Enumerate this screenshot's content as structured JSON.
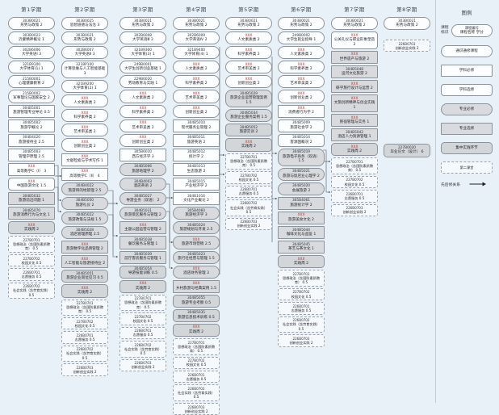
{
  "legend": {
    "title": "图例",
    "badge_label": "课程\n标识",
    "badge_line1": "课程编号",
    "badge_line2": "课程名称 学分",
    "arrow_label": "先后修关系",
    "items": [
      {
        "label": "通识通修课程",
        "t": "ge"
      },
      {
        "label": "学科必修",
        "t": "core"
      },
      {
        "label": "学科选修",
        "t": "disc"
      },
      {
        "label": "专业必修",
        "t": "mreq"
      },
      {
        "label": "专业选修",
        "t": "mele"
      },
      {
        "label": "集中实践环节",
        "t": "prac"
      },
      {
        "label": "第二课堂",
        "t": "sec"
      }
    ]
  },
  "colors": {
    "background": "#e9f1f8",
    "box_fill": "#fcfdfe",
    "major_fill": "#d8dadd",
    "xxx_code": "#b4322d",
    "border": "#8d939b"
  },
  "columns": [
    {
      "header": "第1学期",
      "items": [
        {
          "c": "303B0021",
          "n": "形势与政策",
          "k": "2",
          "t": "ge"
        },
        {
          "c": "303B0023",
          "n": "沂蒙精神概论",
          "k": "1",
          "t": "ge"
        },
        {
          "c": "302B6006",
          "n": "大学英语Ⅰ",
          "k": "3",
          "t": "ge"
        },
        {
          "c": "321B9100",
          "n": "大学体育(1)",
          "k": "1",
          "t": "ge"
        },
        {
          "c": "215B0001",
          "n": "心理健康教育",
          "k": "2",
          "t": "ge"
        },
        {
          "c": "215B0002",
          "n": "军事理论与国家安全",
          "k": "2",
          "t": "ge"
        },
        {
          "c": "304B5001",
          "n": "旅游管理专业导论",
          "k": "0.5",
          "t": "core"
        },
        {
          "c": "304B5002",
          "n": "旅游学概论",
          "k": "2",
          "t": "core"
        },
        {
          "c": "304B4020",
          "n": "旅游接待业",
          "k": "2.5",
          "t": "core"
        },
        {
          "c": "304B5003",
          "n": "管理学原理",
          "k": "2.5",
          "t": "core"
        },
        {
          "c": "XXX",
          "n": "高等数学C（Ⅰ）",
          "k": "3",
          "t": "core"
        },
        {
          "c": "XXX",
          "n": "中国旅游文化",
          "k": "1.5",
          "t": "disc"
        },
        {
          "c": "304B5032",
          "n": "旅游前沿问题",
          "k": "1",
          "t": "mele"
        },
        {
          "c": "304B5070",
          "n": "旅游消费行为与文化",
          "k": "1",
          "t": "mele"
        },
        {
          "c": "XXX",
          "n": "实践周",
          "k": "2",
          "t": "prac"
        },
        {
          "c": "227B0701",
          "n": "思想政治（含国防素质教育）",
          "k": "0.5",
          "t": "sec"
        },
        {
          "c": "227B0702",
          "n": "校园文化",
          "k": "0.5",
          "t": "sec"
        },
        {
          "c": "226B0701",
          "n": "志愿服务",
          "k": "0.5",
          "t": "sec"
        },
        {
          "c": "226B0702",
          "n": "社会实践（含劳育实践）",
          "k": "0.5",
          "t": "sec"
        }
      ]
    },
    {
      "header": "第2学期",
      "items": [
        {
          "c": "303B0025",
          "n": "思想道德与法治",
          "k": "3",
          "t": "ge"
        },
        {
          "c": "303B0021",
          "n": "形势与政策",
          "k": "2",
          "t": "ge"
        },
        {
          "c": "302B6007",
          "n": "大学英语Ⅱ",
          "k": "3",
          "t": "ge"
        },
        {
          "c": "321BP100",
          "n": "计算思维与人工智能基础",
          "k": "3",
          "t": "ge"
        },
        {
          "c": "321B9200",
          "n": "大学体育(2)",
          "k": "1",
          "t": "ge"
        },
        {
          "c": "XXX",
          "n": "人文素质类",
          "k": "2",
          "t": "ge"
        },
        {
          "c": "XXX",
          "n": "科学素养类",
          "k": "2",
          "t": "ge"
        },
        {
          "c": "XXX",
          "n": "艺术审美类",
          "k": "2",
          "t": "ge"
        },
        {
          "c": "XXX",
          "n": "创新创业类",
          "k": "2",
          "t": "ge"
        },
        {
          "c": "XXX",
          "n": "文献检索与学术写作",
          "k": "1",
          "t": "core"
        },
        {
          "c": "XXX",
          "n": "高等数学C（Ⅱ）",
          "k": "4",
          "t": "core"
        },
        {
          "c": "304B4022",
          "n": "旅游目的地管理",
          "k": "2.5",
          "t": "mreq"
        },
        {
          "c": "304B5050",
          "n": "旅游礼仪",
          "k": "2",
          "t": "mreq"
        },
        {
          "c": "304B5022",
          "n": "旅游政策与法规",
          "k": "1.5",
          "t": "mreq"
        },
        {
          "c": "304B5028",
          "n": "酒店管理原理",
          "k": "2.5",
          "t": "mreq"
        },
        {
          "c": "XXX",
          "n": "旅游数字化品牌管理",
          "k": "2",
          "t": "mele"
        },
        {
          "c": "XXX",
          "n": "人工智能与旅游接待业",
          "k": "2",
          "t": "mele"
        },
        {
          "c": "304B5051",
          "n": "旅游企业岗位见习",
          "k": "0.5",
          "t": "prac"
        },
        {
          "c": "XXX",
          "n": "实践周",
          "k": "2",
          "t": "prac"
        },
        {
          "c": "227B0701",
          "n": "思想政治（含国防素质教育）",
          "k": "0.5",
          "t": "sec"
        },
        {
          "c": "227B0702",
          "n": "校园文化",
          "k": "0.5",
          "t": "sec"
        },
        {
          "c": "226B0701",
          "n": "志愿服务",
          "k": "0.5",
          "t": "sec"
        },
        {
          "c": "226B0702",
          "n": "社会实践（含劳育实践）",
          "k": "0.5",
          "t": "sec"
        },
        {
          "c": "226B0703",
          "n": "创新创业实践",
          "k": "2",
          "t": "sec"
        }
      ]
    },
    {
      "header": "第3学期",
      "items": [
        {
          "c": "303B0021",
          "n": "形势与政策",
          "k": "2",
          "t": "ge"
        },
        {
          "c": "302B6008",
          "n": "大学英语Ⅲ",
          "k": "2",
          "t": "ge"
        },
        {
          "c": "321B9300",
          "n": "大学体育(3)",
          "k": "1",
          "t": "ge"
        },
        {
          "c": "249B0001",
          "n": "大学生创新创业基础",
          "k": "1",
          "t": "ge"
        },
        {
          "c": "229B0020",
          "n": "劳动教育与实践",
          "k": "1",
          "t": "ge"
        },
        {
          "c": "XXX",
          "n": "人文素质类",
          "k": "2",
          "t": "ge"
        },
        {
          "c": "XXX",
          "n": "科学素养类",
          "k": "2",
          "t": "ge"
        },
        {
          "c": "XXX",
          "n": "艺术审美类",
          "k": "2",
          "t": "ge"
        },
        {
          "c": "XXX",
          "n": "创新创业类",
          "k": "2",
          "t": "ge"
        },
        {
          "c": "305B0010",
          "n": "西方经济学",
          "k": "3",
          "t": "core"
        },
        {
          "c": "304B5006",
          "n": "旅游地理学",
          "k": "2",
          "t": "mreq"
        },
        {
          "c": "304B4003",
          "n": "酒店英语",
          "k": "2",
          "t": "mreq"
        },
        {
          "c": "304B5027",
          "n": "导游业务（双语）",
          "k": "2",
          "t": "mreq"
        },
        {
          "c": "304B5031",
          "n": "旅游景区服务与管理",
          "k": "2",
          "t": "mreq"
        },
        {
          "c": "XXX",
          "n": "主题公园运营与管理",
          "k": "2",
          "t": "mele"
        },
        {
          "c": "304B5038",
          "n": "餐饮服务与管理",
          "k": "1",
          "t": "mele"
        },
        {
          "c": "304B5039",
          "n": "前厅客房服务与管理",
          "k": "1",
          "t": "mele"
        },
        {
          "c": "304B5054",
          "n": "导游技能训练",
          "k": "0.5",
          "t": "prac"
        },
        {
          "c": "XXX",
          "n": "实践周",
          "k": "2",
          "t": "prac"
        },
        {
          "c": "227B0701",
          "n": "思想政治（含国防素质教育）",
          "k": "0.5",
          "t": "sec"
        },
        {
          "c": "227B0702",
          "n": "校园文化",
          "k": "0.5",
          "t": "sec"
        },
        {
          "c": "226B0701",
          "n": "志愿服务",
          "k": "0.5",
          "t": "sec"
        },
        {
          "c": "226B0702",
          "n": "社会实践（含劳育实践）",
          "k": "0.5",
          "t": "sec"
        },
        {
          "c": "226B0703",
          "n": "创新创业实践",
          "k": "2",
          "t": "sec"
        }
      ]
    },
    {
      "header": "第4学期",
      "items": [
        {
          "c": "303B0021",
          "n": "形势与政策",
          "k": "2",
          "t": "ge"
        },
        {
          "c": "302B6009",
          "n": "大学英语Ⅳ",
          "k": "2",
          "t": "ge"
        },
        {
          "c": "321B9400",
          "n": "大学体育(4)",
          "k": "1",
          "t": "ge"
        },
        {
          "c": "XXX",
          "n": "人文素质类",
          "k": "2",
          "t": "ge"
        },
        {
          "c": "XXX",
          "n": "科学素养类",
          "k": "2",
          "t": "ge"
        },
        {
          "c": "XXX",
          "n": "艺术审美类",
          "k": "2",
          "t": "ge"
        },
        {
          "c": "XXX",
          "n": "创新创业类",
          "k": "2",
          "t": "ge"
        },
        {
          "c": "304B5010",
          "n": "现代服务业管理",
          "k": "2",
          "t": "core"
        },
        {
          "c": "304B5011",
          "n": "旅游英语",
          "k": "2",
          "t": "core"
        },
        {
          "c": "304B5012",
          "n": "统计学",
          "k": "2",
          "t": "core"
        },
        {
          "c": "304B5013",
          "n": "生态旅游",
          "k": "2",
          "t": "core"
        },
        {
          "c": "304B5015",
          "n": "产业经济学",
          "k": "2",
          "t": "core"
        },
        {
          "c": "304B1016",
          "n": "文化产业概论",
          "k": "2",
          "t": "core"
        },
        {
          "c": "305B4060",
          "n": "旅游经济学",
          "k": "3",
          "t": "mreq"
        },
        {
          "c": "304B5024",
          "n": "旅游规划与开发",
          "k": "2.5",
          "t": "mreq"
        },
        {
          "c": "XXX",
          "n": "旅游市场营销",
          "k": "2.5",
          "t": "mreq"
        },
        {
          "c": "304B5023",
          "n": "旅行社经营与管理",
          "k": "1.5",
          "t": "mreq"
        },
        {
          "c": "XXX",
          "n": "酒店财务管理",
          "k": "3",
          "t": "mreq"
        },
        {
          "c": "XXX",
          "n": "乡村旅游与经典案例",
          "k": "1.5",
          "t": "mele"
        },
        {
          "c": "304B5055",
          "n": "旅游专业考察",
          "k": "0.5",
          "t": "prac"
        },
        {
          "c": "304B5035",
          "n": "旅游信息技术训练",
          "k": "0.5",
          "t": "prac"
        },
        {
          "c": "XXX",
          "n": "实践周",
          "k": "2",
          "t": "prac"
        },
        {
          "c": "227B0701",
          "n": "思想政治（含国防素质教育）",
          "k": "0.5",
          "t": "sec"
        },
        {
          "c": "227B0702",
          "n": "校园文化",
          "k": "0.5",
          "t": "sec"
        },
        {
          "c": "226B0701",
          "n": "志愿服务",
          "k": "0.5",
          "t": "sec"
        },
        {
          "c": "226B0702",
          "n": "社会实践（含劳育实践）",
          "k": "0.5",
          "t": "sec"
        },
        {
          "c": "226B0703",
          "n": "创新创业实践",
          "k": "2",
          "t": "sec"
        }
      ]
    },
    {
      "header": "第5学期",
      "items": [
        {
          "c": "303B0021",
          "n": "形势与政策",
          "k": "2",
          "t": "ge"
        },
        {
          "c": "XXX",
          "n": "人文素质类",
          "k": "2",
          "t": "ge"
        },
        {
          "c": "XXX",
          "n": "科学素养类",
          "k": "2",
          "t": "ge"
        },
        {
          "c": "XXX",
          "n": "艺术审美类",
          "k": "2",
          "t": "ge"
        },
        {
          "c": "XXX",
          "n": "创新创业类",
          "k": "2",
          "t": "ge"
        },
        {
          "c": "304B5029",
          "n": "旅游企业运营管理案例",
          "k": "1.5",
          "t": "mreq"
        },
        {
          "c": "304B5034",
          "n": "旅游企业服务案例",
          "k": "1.5",
          "t": "mreq"
        },
        {
          "c": "304B5052",
          "n": "旅游实训",
          "k": "2",
          "t": "prac"
        },
        {
          "c": "XXX",
          "n": "实践周",
          "k": "2",
          "t": "prac"
        },
        {
          "c": "227B0701",
          "n": "思想政治（含国防素质教育）",
          "k": "0.5",
          "t": "sec"
        },
        {
          "c": "227B0702",
          "n": "校园文化",
          "k": "0.5",
          "t": "sec"
        },
        {
          "c": "226B0701",
          "n": "志愿服务",
          "k": "0.5",
          "t": "sec"
        },
        {
          "c": "226B0702",
          "n": "社会实践（含劳育实践）",
          "k": "0.5",
          "t": "sec"
        },
        {
          "c": "226B0703",
          "n": "创新创业实践",
          "k": "2",
          "t": "sec"
        }
      ]
    },
    {
      "header": "第6学期",
      "items": [
        {
          "c": "303B0021",
          "n": "形势与政策",
          "k": "2",
          "t": "ge"
        },
        {
          "c": "249B0002",
          "n": "大学生就业指导",
          "k": "1",
          "t": "ge"
        },
        {
          "c": "XXX",
          "n": "人文素质类",
          "k": "2",
          "t": "ge"
        },
        {
          "c": "XXX",
          "n": "科学素养类",
          "k": "2",
          "t": "ge"
        },
        {
          "c": "XXX",
          "n": "艺术审美类",
          "k": "2",
          "t": "ge"
        },
        {
          "c": "XXX",
          "n": "创新创业类",
          "k": "2",
          "t": "ge"
        },
        {
          "c": "XXX",
          "n": "消费者行为学",
          "k": "2",
          "t": "core"
        },
        {
          "c": "304B5009",
          "n": "旅游社会学",
          "k": "2",
          "t": "disc"
        },
        {
          "c": "304B5014",
          "n": "客源国概况",
          "k": "2",
          "t": "disc"
        },
        {
          "c": "304B5019",
          "n": "旅游电子商务（双语）",
          "k": "1.5",
          "t": "mreq"
        },
        {
          "c": "304B5021",
          "n": "旅游与饭店业心理学",
          "k": "2",
          "t": "mreq"
        },
        {
          "c": "304B5020",
          "n": "会展旅游",
          "k": "2",
          "t": "mreq"
        },
        {
          "c": "305B4061",
          "n": "旅游统计学",
          "k": "2",
          "t": "mele"
        },
        {
          "c": "XXX",
          "n": "旅游美食文化",
          "k": "2",
          "t": "mele"
        },
        {
          "c": "304B5044",
          "n": "咖啡文化与品鉴",
          "k": "1",
          "t": "mele"
        },
        {
          "c": "304B5045",
          "n": "茶艺与茶文化",
          "k": "1",
          "t": "mele"
        },
        {
          "c": "XXX",
          "n": "实践周",
          "k": "2",
          "t": "prac"
        },
        {
          "c": "227B0701",
          "n": "思想政治（含国防素质教育）",
          "k": "0.5",
          "t": "sec"
        },
        {
          "c": "227B0702",
          "n": "校园文化",
          "k": "0.5",
          "t": "sec"
        },
        {
          "c": "226B0701",
          "n": "志愿服务",
          "k": "0.5",
          "t": "sec"
        },
        {
          "c": "226B0702",
          "n": "社会实践（含劳育实践）",
          "k": "0.5",
          "t": "sec"
        },
        {
          "c": "226B0703",
          "n": "创新创业实践",
          "k": "2",
          "t": "sec"
        }
      ]
    },
    {
      "header": "第7学期",
      "items": [
        {
          "c": "303B0021",
          "n": "形势与政策",
          "k": "2",
          "t": "ge"
        },
        {
          "c": "XXX",
          "n": "公关礼仪与职业形象塑造",
          "k": "2",
          "t": "disc"
        },
        {
          "c": "XXX",
          "n": "世界遗产与旅游",
          "k": "2",
          "t": "mele"
        },
        {
          "c": "304B5048",
          "n": "运河文化旅游",
          "k": "2",
          "t": "mele"
        },
        {
          "c": "XXX",
          "n": "研学旅行设计与运营",
          "k": "2",
          "t": "mele"
        },
        {
          "c": "XXX",
          "n": "文旅创新精神与创业实践",
          "k": "1",
          "t": "mele"
        },
        {
          "c": "XXX",
          "n": "民宿管理与实务",
          "k": "1",
          "t": "mele"
        },
        {
          "c": "304B5042",
          "n": "酒店人力资源管理",
          "k": "1",
          "t": "mele"
        },
        {
          "c": "XXX",
          "n": "实践周",
          "k": "2",
          "t": "prac"
        },
        {
          "c": "227B0701",
          "n": "思想政治（含国防素质教育）",
          "k": "0.5",
          "t": "sec"
        },
        {
          "c": "227B0702",
          "n": "校园文化",
          "k": "0.5",
          "t": "sec"
        },
        {
          "c": "226B0701",
          "n": "志愿服务",
          "k": "0.5",
          "t": "sec"
        },
        {
          "c": "226B0703",
          "n": "创新创业实践",
          "k": "2",
          "t": "sec"
        }
      ]
    },
    {
      "header": "第8学期",
      "items": [
        {
          "c": "303B0021",
          "n": "形势与政策",
          "k": "2",
          "t": "ge"
        },
        {
          "c": "226B0703",
          "n": "创新创业实践",
          "k": "2",
          "t": "sec",
          "gap": 10
        },
        {
          "c": "227B0020",
          "n": "毕业论文（设计）",
          "k": "6",
          "t": "prac",
          "gap": 112
        }
      ]
    }
  ]
}
